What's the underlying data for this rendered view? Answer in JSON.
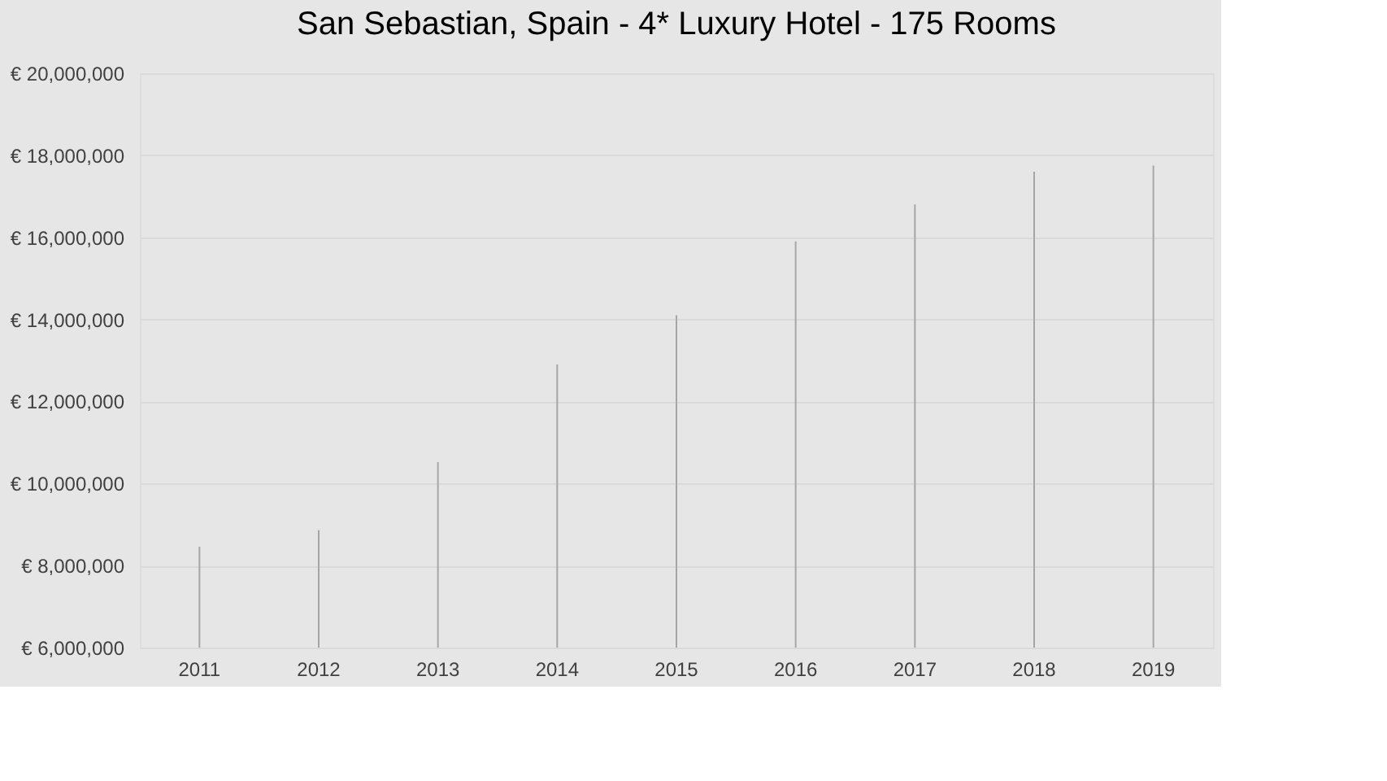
{
  "chart_data": {
    "type": "bar",
    "title": "San Sebastian, Spain - 4* Luxury Hotel - 175 Rooms",
    "categories": [
      "2011",
      "2012",
      "2013",
      "2014",
      "2015",
      "2016",
      "2017",
      "2018",
      "2019"
    ],
    "values": [
      8460000,
      8860000,
      10520000,
      12900000,
      14100000,
      15900000,
      16800000,
      17600000,
      17750000
    ],
    "color": "#a6a6a6",
    "ylim": [
      6000000,
      20000000
    ],
    "yticks": [
      {
        "value": 6000000,
        "label": "€ 6,000,000"
      },
      {
        "value": 8000000,
        "label": "€ 8,000,000"
      },
      {
        "value": 10000000,
        "label": "€ 10,000,000"
      },
      {
        "value": 12000000,
        "label": "€ 12,000,000"
      },
      {
        "value": 14000000,
        "label": "€ 14,000,000"
      },
      {
        "value": 16000000,
        "label": "€ 16,000,000"
      },
      {
        "value": 18000000,
        "label": "€ 18,000,000"
      },
      {
        "value": 20000000,
        "label": "€ 20,000,000"
      }
    ],
    "grid": "y"
  }
}
